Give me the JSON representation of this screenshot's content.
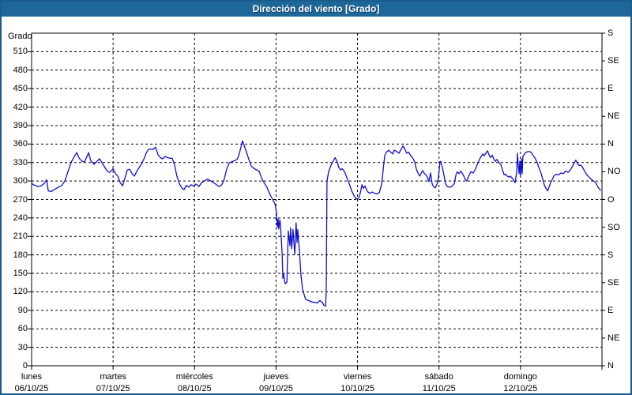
{
  "title": "Dirección del viento [Grado]",
  "colors": {
    "titlebar": "#1e6899",
    "frame": "#1a5c8d",
    "grid": "#000000",
    "line": "#1010cc"
  },
  "chart_data": {
    "type": "line",
    "title": "Dirección del viento [Grado]",
    "ylabel_left": "Grado",
    "ylim": [
      0,
      540
    ],
    "xlim_hours": [
      0,
      168
    ],
    "grid": "dashed",
    "legend": "none",
    "line_color": "#1010cc",
    "left_ticks": [
      0,
      30,
      60,
      90,
      120,
      150,
      180,
      210,
      240,
      270,
      300,
      330,
      360,
      390,
      420,
      450,
      480,
      510
    ],
    "right_ticks": [
      {
        "deg": 0,
        "label": "N"
      },
      {
        "deg": 45,
        "label": "NE"
      },
      {
        "deg": 90,
        "label": "E"
      },
      {
        "deg": 135,
        "label": "SE"
      },
      {
        "deg": 180,
        "label": "S"
      },
      {
        "deg": 225,
        "label": "SO"
      },
      {
        "deg": 270,
        "label": "O"
      },
      {
        "deg": 315,
        "label": "NO"
      },
      {
        "deg": 360,
        "label": "N"
      },
      {
        "deg": 405,
        "label": "NE"
      },
      {
        "deg": 450,
        "label": "E"
      },
      {
        "deg": 495,
        "label": "SE"
      },
      {
        "deg": 540,
        "label": "S"
      }
    ],
    "x_days": [
      {
        "name": "lunes",
        "date": "06/10/25"
      },
      {
        "name": "martes",
        "date": "07/10/25"
      },
      {
        "name": "miércoles",
        "date": "08/10/25"
      },
      {
        "name": "jueves",
        "date": "09/10/25"
      },
      {
        "name": "viernes",
        "date": "10/10/25"
      },
      {
        "name": "sábado",
        "date": "11/10/25"
      },
      {
        "name": "domingo",
        "date": "12/10/25"
      }
    ],
    "series": [
      {
        "name": "Dirección del viento",
        "unit": "Grado",
        "points": [
          [
            0,
            296
          ],
          [
            0.9,
            293
          ],
          [
            1.9,
            291
          ],
          [
            2.8,
            292
          ],
          [
            3.7,
            296
          ],
          [
            4.4,
            302
          ],
          [
            4.9,
            284
          ],
          [
            5.8,
            283
          ],
          [
            7,
            287
          ],
          [
            7.9,
            290
          ],
          [
            8.8,
            292
          ],
          [
            9.8,
            300
          ],
          [
            10.7,
            315
          ],
          [
            11.6,
            330
          ],
          [
            12.6,
            340
          ],
          [
            13.3,
            346
          ],
          [
            14,
            337
          ],
          [
            14.9,
            332
          ],
          [
            15.6,
            331
          ],
          [
            16.8,
            346
          ],
          [
            17.4,
            333
          ],
          [
            18.4,
            327
          ],
          [
            19.1,
            331
          ],
          [
            20,
            336
          ],
          [
            20.7,
            330
          ],
          [
            21.6,
            322
          ],
          [
            22.3,
            316
          ],
          [
            23,
            314
          ],
          [
            23.7,
            318
          ],
          [
            24,
            320
          ],
          [
            24.7,
            312
          ],
          [
            25.4,
            308
          ],
          [
            26.1,
            297
          ],
          [
            26.8,
            292
          ],
          [
            27.5,
            305
          ],
          [
            28.2,
            318
          ],
          [
            28.9,
            319
          ],
          [
            29.6,
            312
          ],
          [
            30.3,
            308
          ],
          [
            31,
            316
          ],
          [
            31.7,
            322
          ],
          [
            32.4,
            328
          ],
          [
            33.1,
            336
          ],
          [
            33.8,
            346
          ],
          [
            34.4,
            351
          ],
          [
            35.1,
            352
          ],
          [
            35.8,
            351
          ],
          [
            36.5,
            355
          ],
          [
            37.2,
            343
          ],
          [
            37.9,
            338
          ],
          [
            38.6,
            336
          ],
          [
            39.3,
            340
          ],
          [
            40,
            338
          ],
          [
            40.7,
            337
          ],
          [
            41.4,
            337
          ],
          [
            42.1,
            326
          ],
          [
            42.8,
            308
          ],
          [
            43.5,
            296
          ],
          [
            44.2,
            289
          ],
          [
            44.9,
            286
          ],
          [
            45.6,
            293
          ],
          [
            46.3,
            290
          ],
          [
            47,
            294
          ],
          [
            47.7,
            292
          ],
          [
            48.4,
            295
          ],
          [
            49.3,
            291
          ],
          [
            50,
            297
          ],
          [
            51.2,
            301
          ],
          [
            51.9,
            303
          ],
          [
            53.1,
            299
          ],
          [
            54.2,
            295
          ],
          [
            55.2,
            291
          ],
          [
            55.9,
            293
          ],
          [
            56.6,
            300
          ],
          [
            57.5,
            320
          ],
          [
            58.2,
            329
          ],
          [
            58.9,
            331
          ],
          [
            59.8,
            333
          ],
          [
            60.5,
            335
          ],
          [
            61,
            341
          ],
          [
            61.7,
            356
          ],
          [
            62.1,
            365
          ],
          [
            62.6,
            358
          ],
          [
            63.3,
            347
          ],
          [
            64,
            335
          ],
          [
            64.7,
            324
          ],
          [
            65.6,
            320
          ],
          [
            66.3,
            318
          ],
          [
            67,
            316
          ],
          [
            67.9,
            303
          ],
          [
            68.6,
            296
          ],
          [
            69.3,
            290
          ],
          [
            70.3,
            277
          ],
          [
            71,
            270
          ],
          [
            71.7,
            263
          ],
          [
            72.1,
            250
          ],
          [
            72.4,
            225
          ],
          [
            72.6,
            238
          ],
          [
            72.8,
            222
          ],
          [
            73.1,
            237
          ],
          [
            73.3,
            230
          ],
          [
            73.8,
            180
          ],
          [
            74,
            142
          ],
          [
            74.2,
            150
          ],
          [
            74.5,
            138
          ],
          [
            74.7,
            133
          ],
          [
            75.2,
            136
          ],
          [
            75.6,
            219
          ],
          [
            76.1,
            195
          ],
          [
            76.3,
            224
          ],
          [
            76.6,
            190
          ],
          [
            77,
            221
          ],
          [
            77.5,
            181
          ],
          [
            77.9,
            232
          ],
          [
            78.2,
            200
          ],
          [
            78.4,
            221
          ],
          [
            78.9,
            185
          ],
          [
            79.3,
            150
          ],
          [
            79.8,
            125
          ],
          [
            80.3,
            115
          ],
          [
            80.7,
            108
          ],
          [
            81.9,
            105
          ],
          [
            83.1,
            103
          ],
          [
            84.2,
            102
          ],
          [
            84.9,
            106
          ],
          [
            85.6,
            103
          ],
          [
            86.1,
            98
          ],
          [
            86.6,
            97
          ],
          [
            86.8,
            126
          ],
          [
            87,
            300
          ],
          [
            87.5,
            315
          ],
          [
            88.2,
            326
          ],
          [
            88.9,
            333
          ],
          [
            89.4,
            338
          ],
          [
            90.1,
            330
          ],
          [
            90.5,
            322
          ],
          [
            91,
            318
          ],
          [
            91.5,
            320
          ],
          [
            92.2,
            315
          ],
          [
            92.9,
            305
          ],
          [
            93.6,
            295
          ],
          [
            94.2,
            285
          ],
          [
            94.9,
            277
          ],
          [
            95.6,
            271
          ],
          [
            96.3,
            272
          ],
          [
            96.8,
            280
          ],
          [
            97.3,
            294
          ],
          [
            97.7,
            288
          ],
          [
            98.2,
            292
          ],
          [
            98.9,
            283
          ],
          [
            99.6,
            280
          ],
          [
            100.3,
            282
          ],
          [
            101,
            280
          ],
          [
            101.7,
            279
          ],
          [
            102.4,
            281
          ],
          [
            103.1,
            295
          ],
          [
            103.6,
            320
          ],
          [
            104,
            341
          ],
          [
            104.5,
            347
          ],
          [
            105.2,
            350
          ],
          [
            105.7,
            347
          ],
          [
            106.4,
            344
          ],
          [
            106.8,
            350
          ],
          [
            107.5,
            348
          ],
          [
            108.2,
            345
          ],
          [
            108.7,
            350
          ],
          [
            109.4,
            357
          ],
          [
            110.1,
            350
          ],
          [
            110.5,
            345
          ],
          [
            111,
            347
          ],
          [
            111.7,
            341
          ],
          [
            112.2,
            338
          ],
          [
            112.9,
            330
          ],
          [
            113.3,
            320
          ],
          [
            113.8,
            313
          ],
          [
            114.3,
            308
          ],
          [
            114.7,
            312
          ],
          [
            115.2,
            317
          ],
          [
            115.6,
            313
          ],
          [
            116.1,
            310
          ],
          [
            116.6,
            306
          ],
          [
            117,
            299
          ],
          [
            117.5,
            313
          ],
          [
            118,
            295
          ],
          [
            118.4,
            291
          ],
          [
            118.9,
            289
          ],
          [
            119.4,
            295
          ],
          [
            119.8,
            305
          ],
          [
            120.3,
            331
          ],
          [
            120.5,
            332
          ],
          [
            121,
            322
          ],
          [
            121.5,
            308
          ],
          [
            121.9,
            296
          ],
          [
            122.4,
            291
          ],
          [
            123.1,
            290
          ],
          [
            123.8,
            291
          ],
          [
            124.5,
            296
          ],
          [
            125,
            310
          ],
          [
            125.4,
            315
          ],
          [
            125.9,
            312
          ],
          [
            126.4,
            316
          ],
          [
            126.8,
            313
          ],
          [
            127.3,
            308
          ],
          [
            127.8,
            302
          ],
          [
            128.2,
            300
          ],
          [
            128.7,
            308
          ],
          [
            129.4,
            315
          ],
          [
            130.1,
            313
          ],
          [
            130.8,
            320
          ],
          [
            131.5,
            330
          ],
          [
            132.2,
            338
          ],
          [
            132.9,
            344
          ],
          [
            133.3,
            341
          ],
          [
            133.8,
            345
          ],
          [
            134.3,
            349
          ],
          [
            134.7,
            343
          ],
          [
            135.2,
            338
          ],
          [
            135.7,
            342
          ],
          [
            136.1,
            336
          ],
          [
            136.6,
            332
          ],
          [
            137.1,
            335
          ],
          [
            137.5,
            331
          ],
          [
            138.2,
            327
          ],
          [
            138.7,
            318
          ],
          [
            139.2,
            310
          ],
          [
            139.6,
            311
          ],
          [
            140.1,
            308
          ],
          [
            140.6,
            306
          ],
          [
            141,
            308
          ],
          [
            141.5,
            305
          ],
          [
            142,
            301
          ],
          [
            142.4,
            297
          ],
          [
            142.9,
            315
          ],
          [
            143.1,
            345
          ],
          [
            143.3,
            330
          ],
          [
            143.6,
            312
          ],
          [
            143.8,
            332
          ],
          [
            144,
            308
          ],
          [
            144.3,
            336
          ],
          [
            144.5,
            312
          ],
          [
            144.7,
            340
          ],
          [
            145.2,
            344
          ],
          [
            145.7,
            347
          ],
          [
            146.4,
            348
          ],
          [
            147.1,
            347
          ],
          [
            147.5,
            343
          ],
          [
            148.2,
            338
          ],
          [
            148.9,
            330
          ],
          [
            149.4,
            322
          ],
          [
            150.1,
            312
          ],
          [
            150.6,
            302
          ],
          [
            151,
            294
          ],
          [
            151.5,
            288
          ],
          [
            152,
            284
          ],
          [
            152.4,
            290
          ],
          [
            152.9,
            298
          ],
          [
            153.4,
            303
          ],
          [
            153.8,
            308
          ],
          [
            154.5,
            311
          ],
          [
            155.2,
            310
          ],
          [
            155.9,
            313
          ],
          [
            156.6,
            312
          ],
          [
            157.3,
            316
          ],
          [
            158,
            314
          ],
          [
            158.7,
            318
          ],
          [
            159.4,
            325
          ],
          [
            159.9,
            330
          ],
          [
            160.3,
            334
          ],
          [
            160.8,
            328
          ],
          [
            161.3,
            325
          ],
          [
            161.7,
            326
          ],
          [
            162.2,
            323
          ],
          [
            162.7,
            318
          ],
          [
            163.4,
            311
          ],
          [
            164.1,
            307
          ],
          [
            164.8,
            303
          ],
          [
            165.5,
            300
          ],
          [
            166.2,
            297
          ],
          [
            166.6,
            292
          ],
          [
            167.1,
            288
          ],
          [
            167.6,
            285
          ]
        ]
      }
    ]
  }
}
